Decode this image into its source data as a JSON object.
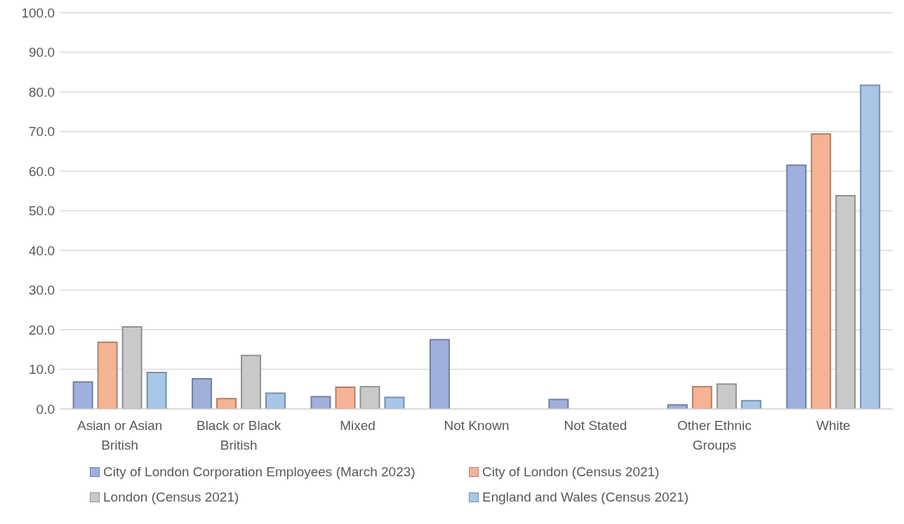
{
  "chart_data": {
    "type": "bar",
    "categories": [
      "Asian or Asian British",
      "Black or Black British",
      "Mixed",
      "Not Known",
      "Not Stated",
      "Other Ethnic Groups",
      "White"
    ],
    "series": [
      {
        "name": "City of London Corporation Employees (March 2023)",
        "color": "#a0b0dc",
        "values": [
          6.8,
          7.6,
          3.1,
          17.5,
          2.4,
          1.0,
          61.5
        ]
      },
      {
        "name": "City of London (Census 2021)",
        "color": "#f5b394",
        "values": [
          16.8,
          2.6,
          5.5,
          null,
          null,
          5.6,
          69.4
        ]
      },
      {
        "name": "London (Census 2021)",
        "color": "#c9c9c9",
        "values": [
          20.7,
          13.5,
          5.6,
          null,
          null,
          6.3,
          53.8
        ]
      },
      {
        "name": "England and Wales (Census 2021)",
        "color": "#a7c6e8",
        "values": [
          9.2,
          4.0,
          2.9,
          null,
          null,
          2.1,
          81.7
        ]
      }
    ],
    "ylim": [
      0,
      100
    ],
    "yticks": [
      {
        "value": 0,
        "label": "0.0"
      },
      {
        "value": 10,
        "label": "10.0"
      },
      {
        "value": 20,
        "label": "20.0"
      },
      {
        "value": 30,
        "label": "30.0"
      },
      {
        "value": 40,
        "label": "40.0"
      },
      {
        "value": 50,
        "label": "50.0"
      },
      {
        "value": 60,
        "label": "60.0"
      },
      {
        "value": 70,
        "label": "70.0"
      },
      {
        "value": 80,
        "label": "80.0"
      },
      {
        "value": 90,
        "label": "90.0"
      },
      {
        "value": 100,
        "label": "100.0"
      }
    ],
    "grid": "y",
    "legend": "bottom"
  }
}
